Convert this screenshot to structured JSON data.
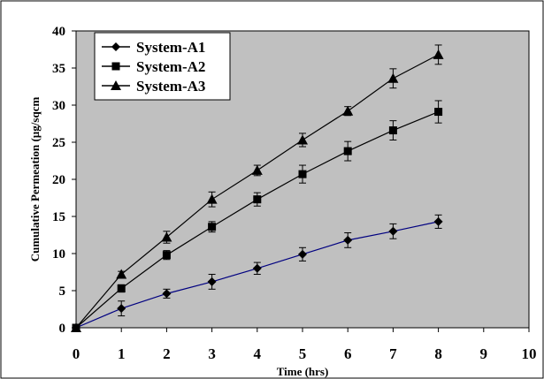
{
  "chart_data": {
    "type": "line",
    "xlabel": "Time (hrs)",
    "ylabel": "Cumulative Permeation  (µg/sqcm",
    "xlim": [
      0,
      10
    ],
    "ylim": [
      0,
      40
    ],
    "x_ticks": [
      0,
      1,
      2,
      3,
      4,
      5,
      6,
      7,
      8,
      9,
      10
    ],
    "y_ticks": [
      0,
      5,
      10,
      15,
      20,
      25,
      30,
      35,
      40
    ],
    "grid": false,
    "plot_background": "#c0c0c0",
    "legend_position": "top-left",
    "x": [
      0,
      1,
      2,
      3,
      4,
      5,
      6,
      7,
      8
    ],
    "series": [
      {
        "name": "System-A1",
        "marker": "diamond",
        "line_color": "#000080",
        "values": [
          0,
          2.6,
          4.6,
          6.2,
          8.0,
          9.9,
          11.8,
          13.0,
          14.3
        ],
        "errors": [
          0,
          1.0,
          0.6,
          1.0,
          0.8,
          0.9,
          1.0,
          1.0,
          0.9
        ]
      },
      {
        "name": "System-A2",
        "marker": "square",
        "line_color": "#000000",
        "values": [
          0,
          5.3,
          9.8,
          13.6,
          17.3,
          20.7,
          23.8,
          26.6,
          29.1
        ],
        "errors": [
          0,
          0.5,
          0.6,
          0.7,
          0.9,
          1.2,
          1.3,
          1.3,
          1.5
        ]
      },
      {
        "name": "System-A3",
        "marker": "triangle",
        "line_color": "#000000",
        "values": [
          0,
          7.2,
          12.2,
          17.3,
          21.2,
          25.3,
          29.2,
          33.6,
          36.8
        ],
        "errors": [
          0,
          0.4,
          0.8,
          1.0,
          0.7,
          0.9,
          0.6,
          1.3,
          1.3
        ]
      }
    ]
  }
}
